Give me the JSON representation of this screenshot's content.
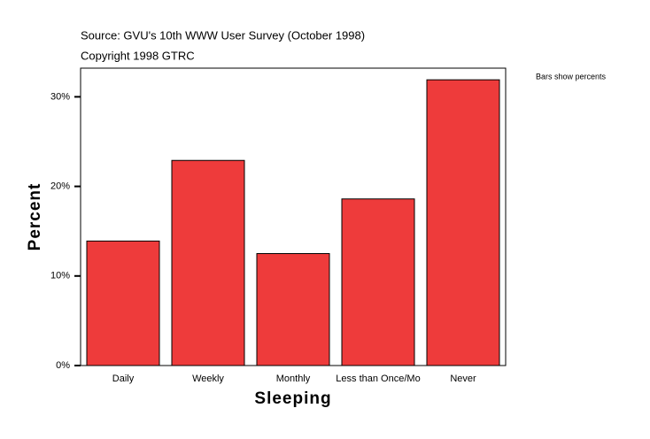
{
  "chart_data": {
    "type": "bar",
    "title": "Source: GVU's 10th WWW User Survey (October 1998)",
    "subtitle": "Copyright 1998 GTRC",
    "annotation": "Bars show percents",
    "x_label": "Sleeping",
    "y_label": "Percent",
    "categories": [
      "Daily",
      "Weekly",
      "Monthly",
      "Less than Once/Mo",
      "Never"
    ],
    "values": [
      13.9,
      22.9,
      12.5,
      18.6,
      31.9
    ],
    "color": "#ee3b3b",
    "ylim": [
      0,
      33.2
    ],
    "yticks": [
      {
        "value": 0,
        "label": "0%"
      },
      {
        "value": 10,
        "label": "10%"
      },
      {
        "value": 20,
        "label": "20%"
      },
      {
        "value": 30,
        "label": "30%"
      }
    ]
  }
}
